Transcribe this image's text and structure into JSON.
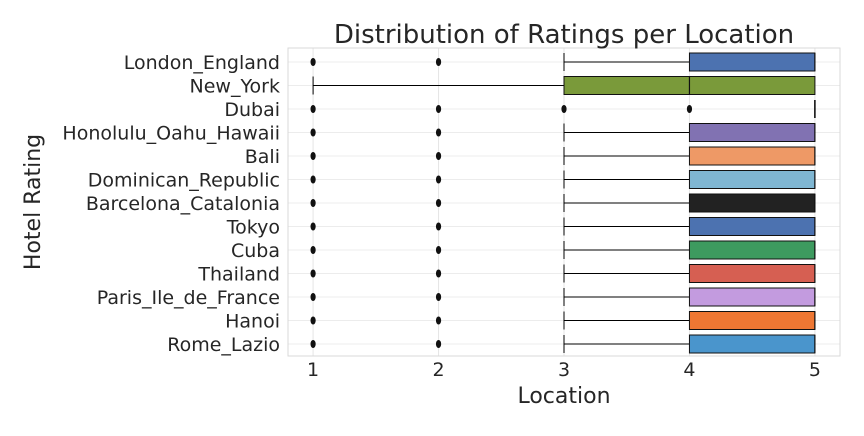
{
  "chart_data": {
    "type": "box",
    "orientation": "horizontal",
    "title": "Distribution of Ratings per Location",
    "xlabel": "Location",
    "ylabel": "Hotel Rating",
    "xlim": [
      0.8,
      5.2
    ],
    "xticks": [
      1,
      2,
      3,
      4,
      5
    ],
    "grid": true,
    "categories": [
      "London_England",
      "New_York",
      "Dubai",
      "Honolulu_Oahu_Hawaii",
      "Bali",
      "Dominican_Republic",
      "Barcelona_Catalonia",
      "Tokyo",
      "Cuba",
      "Thailand",
      "Paris_Ile_de_France",
      "Hanoi",
      "Rome_Lazio"
    ],
    "boxes": [
      {
        "category": "London_England",
        "whisker_low": 3,
        "q1": 4,
        "median": 5,
        "q3": 5,
        "whisker_high": 5,
        "outliers": [
          1,
          2
        ],
        "color": "#4c72b0"
      },
      {
        "category": "New_York",
        "whisker_low": 1,
        "q1": 3,
        "median": 4,
        "q3": 5,
        "whisker_high": 5,
        "outliers": [],
        "color": "#7a9a3a"
      },
      {
        "category": "Dubai",
        "whisker_low": 5,
        "q1": 5,
        "median": 5,
        "q3": 5,
        "whisker_high": 5,
        "outliers": [
          1,
          2,
          3,
          4
        ],
        "color": "#c44e52"
      },
      {
        "category": "Honolulu_Oahu_Hawaii",
        "whisker_low": 3,
        "q1": 4,
        "median": 5,
        "q3": 5,
        "whisker_high": 5,
        "outliers": [
          1,
          2
        ],
        "color": "#8172b2"
      },
      {
        "category": "Bali",
        "whisker_low": 3,
        "q1": 4,
        "median": 5,
        "q3": 5,
        "whisker_high": 5,
        "outliers": [
          1,
          2
        ],
        "color": "#ee9966"
      },
      {
        "category": "Dominican_Republic",
        "whisker_low": 3,
        "q1": 4,
        "median": 5,
        "q3": 5,
        "whisker_high": 5,
        "outliers": [
          1,
          2
        ],
        "color": "#7fb6d2"
      },
      {
        "category": "Barcelona_Catalonia",
        "whisker_low": 3,
        "q1": 4,
        "median": 5,
        "q3": 5,
        "whisker_high": 5,
        "outliers": [
          1,
          2
        ],
        "color": "#222222"
      },
      {
        "category": "Tokyo",
        "whisker_low": 3,
        "q1": 4,
        "median": 5,
        "q3": 5,
        "whisker_high": 5,
        "outliers": [
          1,
          2
        ],
        "color": "#4c72b0"
      },
      {
        "category": "Cuba",
        "whisker_low": 3,
        "q1": 4,
        "median": 5,
        "q3": 5,
        "whisker_high": 5,
        "outliers": [
          1,
          2
        ],
        "color": "#3d9a5f"
      },
      {
        "category": "Thailand",
        "whisker_low": 3,
        "q1": 4,
        "median": 5,
        "q3": 5,
        "whisker_high": 5,
        "outliers": [
          1,
          2
        ],
        "color": "#d65f52"
      },
      {
        "category": "Paris_Ile_de_France",
        "whisker_low": 3,
        "q1": 4,
        "median": 5,
        "q3": 5,
        "whisker_high": 5,
        "outliers": [
          1,
          2
        ],
        "color": "#c39bdf"
      },
      {
        "category": "Hanoi",
        "whisker_low": 3,
        "q1": 4,
        "median": 5,
        "q3": 5,
        "whisker_high": 5,
        "outliers": [
          1,
          2
        ],
        "color": "#ee7733"
      },
      {
        "category": "Rome_Lazio",
        "whisker_low": 3,
        "q1": 4,
        "median": 5,
        "q3": 5,
        "whisker_high": 5,
        "outliers": [
          1,
          2
        ],
        "color": "#4a95cc"
      }
    ]
  }
}
